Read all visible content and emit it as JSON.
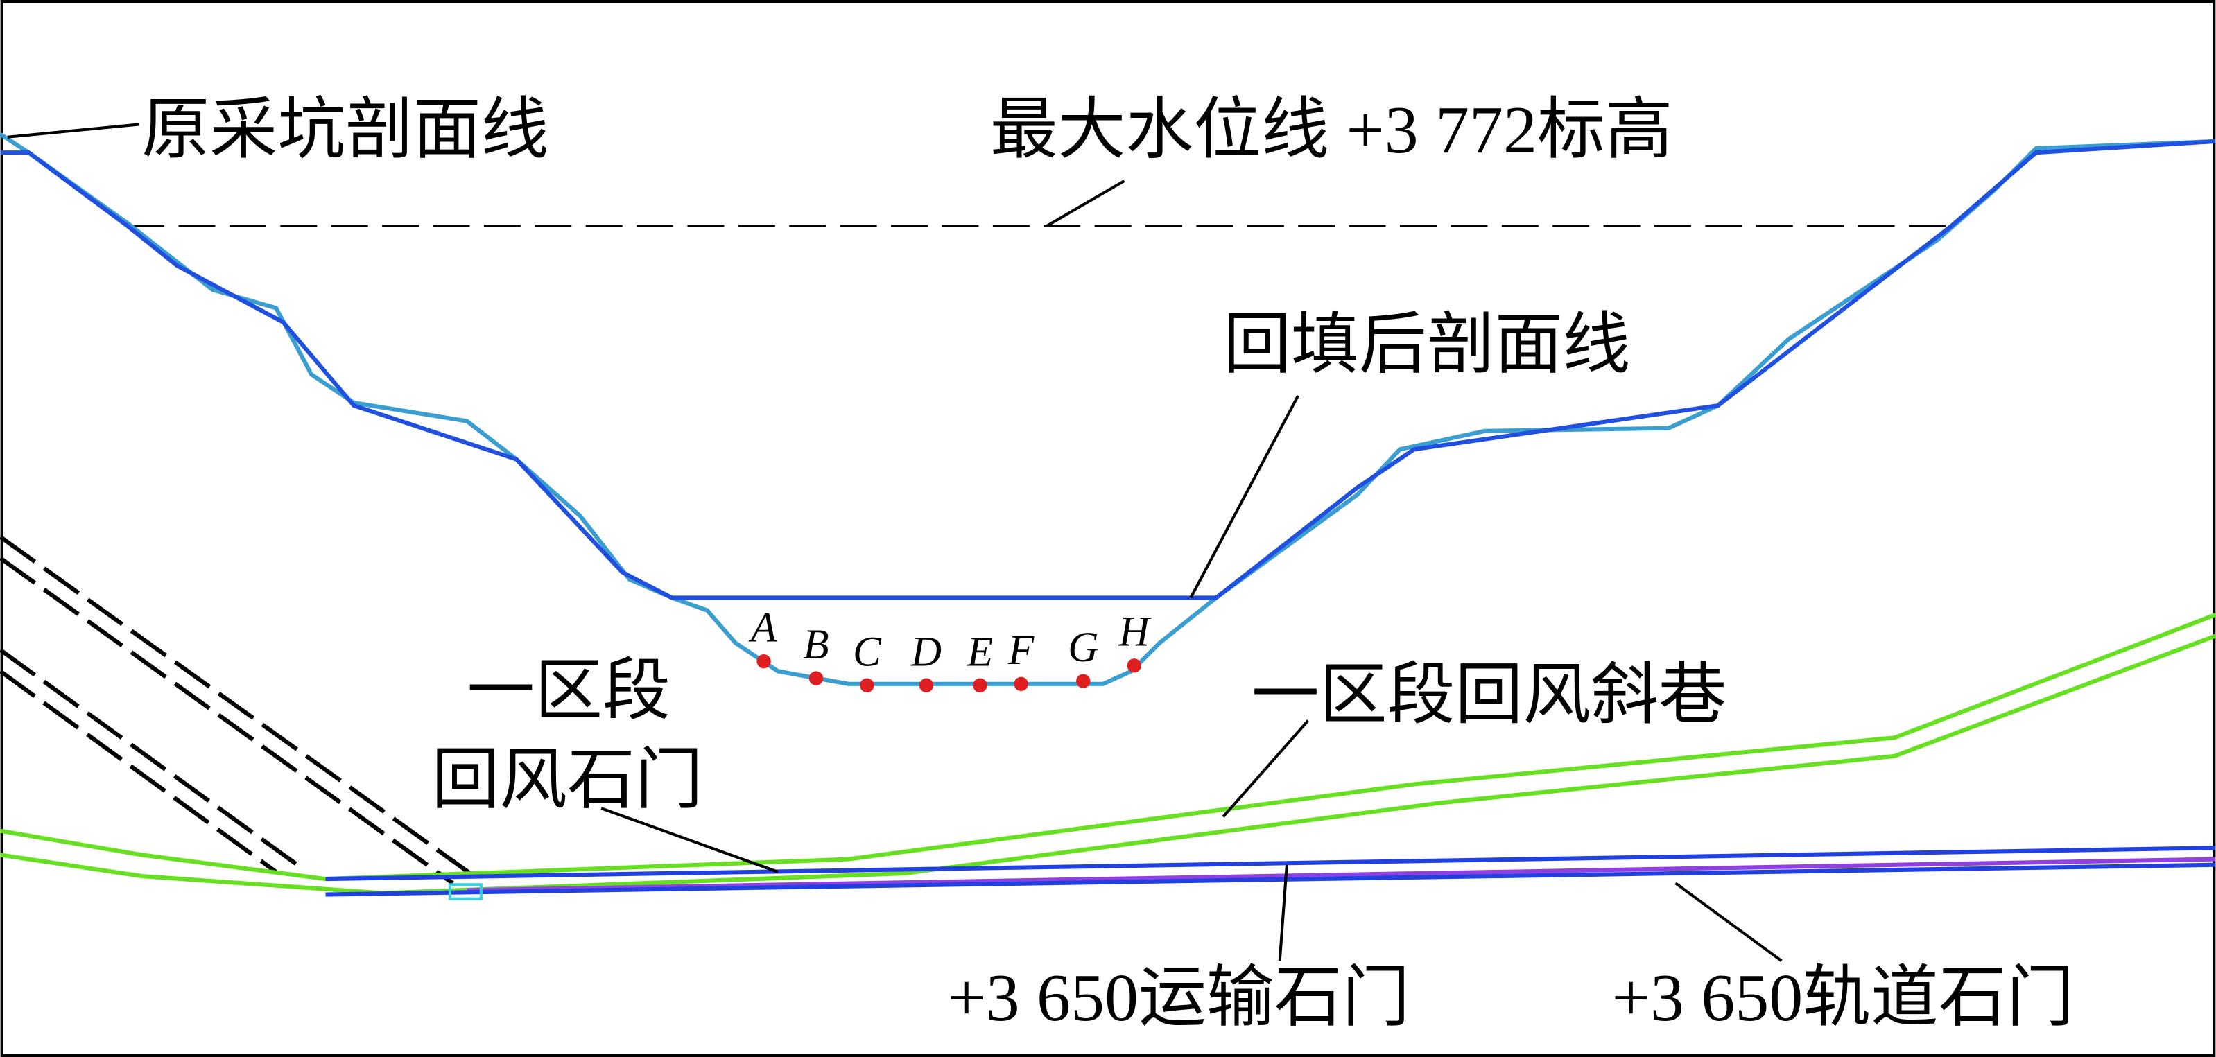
{
  "labels": {
    "original_profile": "原采坑剖面线",
    "max_water_level": "最大水位线 +3 772标高",
    "backfilled_profile": "回填后剖面线",
    "zone_crosscut_line1": "一区段",
    "zone_crosscut_line2": "回风石门",
    "zone_incline": "一区段回风斜巷",
    "haulage_crosscut": "+3 650运输石门",
    "track_crosscut": "+3 650轨道石门"
  },
  "points": [
    {
      "label": "A"
    },
    {
      "label": "B"
    },
    {
      "label": "C"
    },
    {
      "label": "D"
    },
    {
      "label": "E"
    },
    {
      "label": "F"
    },
    {
      "label": "G"
    },
    {
      "label": "H"
    }
  ]
}
